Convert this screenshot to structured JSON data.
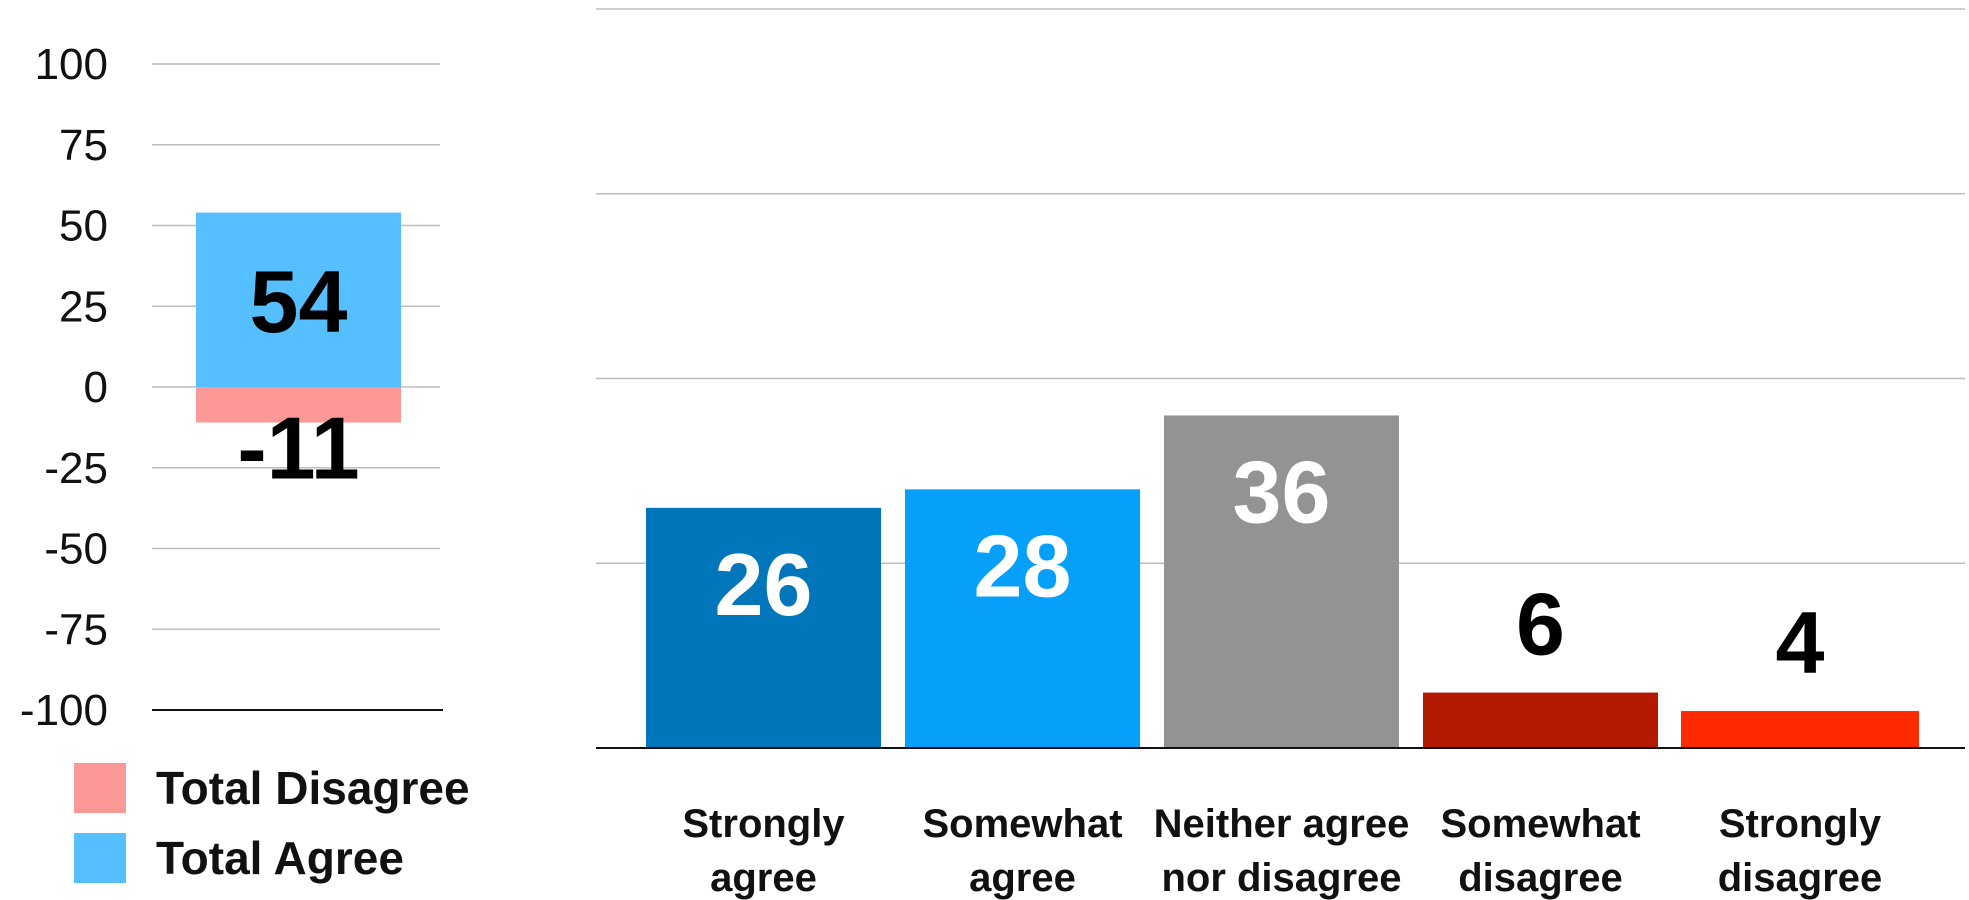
{
  "chart_data": [
    {
      "type": "bar",
      "stacked": true,
      "categories": [
        ""
      ],
      "series": [
        {
          "name": "Total Agree",
          "values": [
            54
          ],
          "color": "#56bfff"
        },
        {
          "name": "Total Disagree",
          "values": [
            -11
          ],
          "color": "#fc9896"
        }
      ],
      "data_labels": [
        "54",
        "-11"
      ],
      "yticks": [
        "100",
        "75",
        "50",
        "25",
        "0",
        "-25",
        "-50",
        "-75",
        "-100"
      ],
      "ylim": [
        -100,
        100
      ],
      "grid": true,
      "legend": {
        "position": "bottom-left",
        "entries": [
          {
            "label": "Total Disagree",
            "color": "#fc9896"
          },
          {
            "label": "Total Agree",
            "color": "#56bfff"
          }
        ]
      }
    },
    {
      "type": "bar",
      "categories": [
        [
          "Strongly",
          "agree"
        ],
        [
          "Somewhat",
          "agree"
        ],
        [
          "Neither agree",
          "nor disagree"
        ],
        [
          "Somewhat",
          "disagree"
        ],
        [
          "Strongly",
          "disagree"
        ]
      ],
      "values": [
        26,
        28,
        36,
        6,
        4
      ],
      "data_labels": [
        "26",
        "28",
        "36",
        "6",
        "4"
      ],
      "colors": [
        "#0276bb",
        "#06a0fa",
        "#939393",
        "#b21a02",
        "#ff2a00"
      ],
      "label_colors": [
        "#ffffff",
        "#ffffff",
        "#ffffff",
        "#000000",
        "#000000"
      ],
      "ylim": [
        0,
        80
      ],
      "grid": true
    }
  ]
}
